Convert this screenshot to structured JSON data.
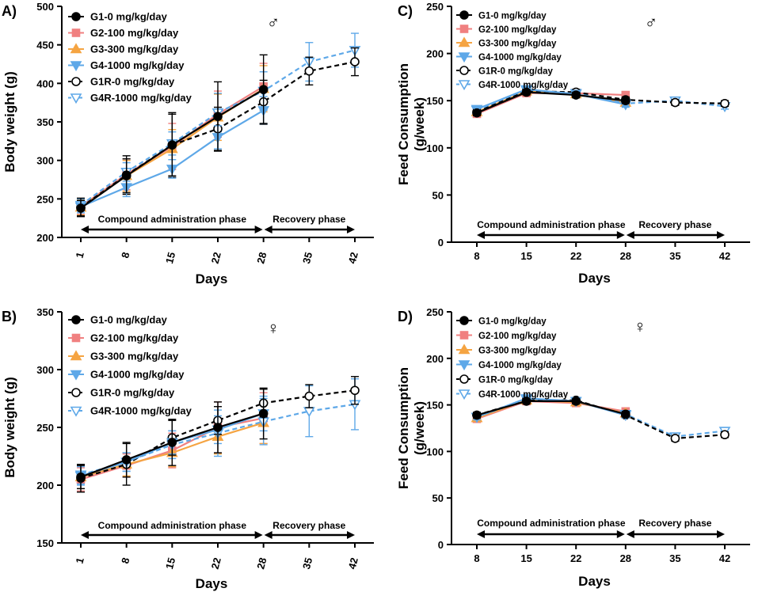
{
  "colors": {
    "G1": "#000000",
    "G2": "#f08080",
    "G3": "#f5a442",
    "G4": "#5ea8e8",
    "G1R": "#000000",
    "G4R": "#5ea8e8"
  },
  "legend_labels": {
    "G1": "G1-0 mg/kg/day",
    "G2": "G2-100 mg/kg/day",
    "G3": "G3-300 mg/kg/day",
    "G4": "G4-1000 mg/kg/day",
    "G1R": "G1R-0 mg/kg/day",
    "G4R": "G4R-1000 mg/kg/day"
  },
  "phases": {
    "admin": "Compound administration phase",
    "recovery": "Recovery phase"
  },
  "chart_data": [
    {
      "id": "A",
      "panel_label": "A)",
      "type": "line",
      "sex_symbol": "♂",
      "xlabel": "Days",
      "ylabel": "Body weight (g)",
      "x": [
        1,
        8,
        15,
        22,
        28,
        35,
        42
      ],
      "ylim": [
        200,
        500
      ],
      "yticks": [
        200,
        250,
        300,
        350,
        400,
        450,
        500
      ],
      "series": [
        {
          "key": "G1",
          "x": [
            1,
            8,
            15,
            22,
            28
          ],
          "values": [
            238,
            280,
            320,
            357,
            392
          ],
          "err": [
            10,
            22,
            40,
            45,
            45
          ]
        },
        {
          "key": "G2",
          "x": [
            1,
            8,
            15,
            22,
            28
          ],
          "values": [
            240,
            282,
            318,
            360,
            396
          ],
          "err": [
            10,
            20,
            30,
            30,
            30
          ]
        },
        {
          "key": "G3",
          "x": [
            1,
            8,
            15,
            22,
            28
          ],
          "values": [
            239,
            280,
            315,
            356,
            393
          ],
          "err": [
            10,
            20,
            25,
            30,
            30
          ]
        },
        {
          "key": "G4",
          "x": [
            1,
            8,
            15,
            22,
            28
          ],
          "values": [
            240,
            265,
            289,
            330,
            365
          ],
          "err": [
            8,
            12,
            12,
            15,
            18
          ]
        },
        {
          "key": "G1R",
          "x": [
            1,
            8,
            15,
            22,
            28,
            35,
            42
          ],
          "values": [
            239,
            281,
            320,
            341,
            376,
            416,
            428
          ],
          "err": [
            12,
            25,
            42,
            28,
            28,
            18,
            18
          ]
        },
        {
          "key": "G4R",
          "x": [
            1,
            8,
            15,
            22,
            28,
            35,
            42
          ],
          "values": [
            242,
            285,
            322,
            362,
            390,
            428,
            443
          ],
          "err": [
            8,
            12,
            15,
            25,
            25,
            25,
            22
          ]
        }
      ]
    },
    {
      "id": "B",
      "panel_label": "B)",
      "type": "line",
      "sex_symbol": "♀",
      "xlabel": "Days",
      "ylabel": "Body weight (g)",
      "x": [
        1,
        8,
        15,
        22,
        28,
        35,
        42
      ],
      "ylim": [
        150,
        350
      ],
      "yticks": [
        150,
        200,
        250,
        300,
        350
      ],
      "series": [
        {
          "key": "G1",
          "x": [
            1,
            8,
            15,
            22,
            28
          ],
          "values": [
            207,
            222,
            237,
            250,
            262
          ],
          "err": [
            10,
            15,
            20,
            22,
            22
          ]
        },
        {
          "key": "G2",
          "x": [
            1,
            8,
            15,
            22,
            28
          ],
          "values": [
            205,
            217,
            230,
            250,
            258
          ],
          "err": [
            10,
            10,
            15,
            22,
            22
          ]
        },
        {
          "key": "G3",
          "x": [
            1,
            8,
            15,
            22,
            28
          ],
          "values": [
            207,
            218,
            228,
            242,
            254
          ],
          "err": [
            10,
            10,
            12,
            15,
            18
          ]
        },
        {
          "key": "G4",
          "x": [
            1,
            8,
            15,
            22,
            28
          ],
          "values": [
            208,
            220,
            237,
            248,
            262
          ],
          "err": [
            8,
            8,
            10,
            12,
            15
          ]
        },
        {
          "key": "G1R",
          "x": [
            1,
            8,
            15,
            22,
            28,
            35,
            42
          ],
          "values": [
            206,
            218,
            241,
            256,
            271,
            277,
            282
          ],
          "err": [
            12,
            18,
            15,
            12,
            12,
            10,
            12
          ]
        },
        {
          "key": "G4R",
          "x": [
            1,
            8,
            15,
            22,
            28,
            35,
            42
          ],
          "values": [
            209,
            220,
            235,
            245,
            255,
            264,
            270
          ],
          "err": [
            8,
            8,
            12,
            20,
            20,
            22,
            22
          ]
        }
      ]
    },
    {
      "id": "C",
      "panel_label": "C)",
      "type": "line",
      "sex_symbol": "♂",
      "xlabel": "Days",
      "ylabel": "Feed Consumption (g/week)",
      "x": [
        8,
        15,
        22,
        28,
        35,
        42
      ],
      "ylim": [
        0,
        250
      ],
      "yticks": [
        0,
        50,
        100,
        150,
        200,
        250
      ],
      "series": [
        {
          "key": "G1",
          "x": [
            8,
            15,
            22,
            28
          ],
          "values": [
            137,
            159,
            156,
            150
          ],
          "err": [
            3,
            3,
            3,
            3
          ]
        },
        {
          "key": "G2",
          "x": [
            8,
            15,
            22,
            28
          ],
          "values": [
            136,
            158,
            158,
            156
          ],
          "err": [
            3,
            3,
            3,
            3
          ]
        },
        {
          "key": "G3",
          "x": [
            8,
            15,
            22,
            28
          ],
          "values": [
            138,
            160,
            157,
            148
          ],
          "err": [
            3,
            3,
            3,
            3
          ]
        },
        {
          "key": "G4",
          "x": [
            8,
            15,
            22,
            28
          ],
          "values": [
            141,
            162,
            157,
            146
          ],
          "err": [
            3,
            3,
            3,
            3
          ]
        },
        {
          "key": "G1R",
          "x": [
            8,
            15,
            22,
            28,
            35,
            42
          ],
          "values": [
            138,
            160,
            159,
            151,
            148,
            147
          ],
          "err": [
            3,
            3,
            3,
            3,
            3,
            3
          ]
        },
        {
          "key": "G4R",
          "x": [
            8,
            15,
            22,
            28,
            35,
            42
          ],
          "values": [
            140,
            161,
            158,
            147,
            150,
            144
          ],
          "err": [
            3,
            3,
            3,
            3,
            3,
            3
          ]
        }
      ]
    },
    {
      "id": "D",
      "panel_label": "D)",
      "type": "line",
      "sex_symbol": "♀",
      "xlabel": "Days",
      "ylabel": "Feed Consumption (g/week)",
      "x": [
        8,
        15,
        22,
        28,
        35,
        42
      ],
      "ylim": [
        0,
        250
      ],
      "yticks": [
        0,
        50,
        100,
        150,
        200,
        250
      ],
      "series": [
        {
          "key": "G1",
          "x": [
            8,
            15,
            22,
            28
          ],
          "values": [
            139,
            154,
            154,
            140
          ],
          "err": [
            3,
            3,
            3,
            3
          ]
        },
        {
          "key": "G2",
          "x": [
            8,
            15,
            22,
            28
          ],
          "values": [
            135,
            154,
            152,
            143
          ],
          "err": [
            3,
            3,
            3,
            3
          ]
        },
        {
          "key": "G3",
          "x": [
            8,
            15,
            22,
            28
          ],
          "values": [
            136,
            155,
            153,
            141
          ],
          "err": [
            3,
            3,
            3,
            3
          ]
        },
        {
          "key": "G4",
          "x": [
            8,
            15,
            22,
            28
          ],
          "values": [
            137,
            157,
            154,
            139
          ],
          "err": [
            3,
            3,
            3,
            3
          ]
        },
        {
          "key": "G1R",
          "x": [
            8,
            15,
            22,
            28,
            35,
            42
          ],
          "values": [
            139,
            155,
            155,
            139,
            114,
            118
          ],
          "err": [
            3,
            3,
            3,
            3,
            3,
            3
          ]
        },
        {
          "key": "G4R",
          "x": [
            8,
            15,
            22,
            28,
            35,
            42
          ],
          "values": [
            137,
            156,
            154,
            140,
            116,
            122
          ],
          "err": [
            3,
            3,
            3,
            3,
            3,
            3
          ]
        }
      ]
    }
  ]
}
